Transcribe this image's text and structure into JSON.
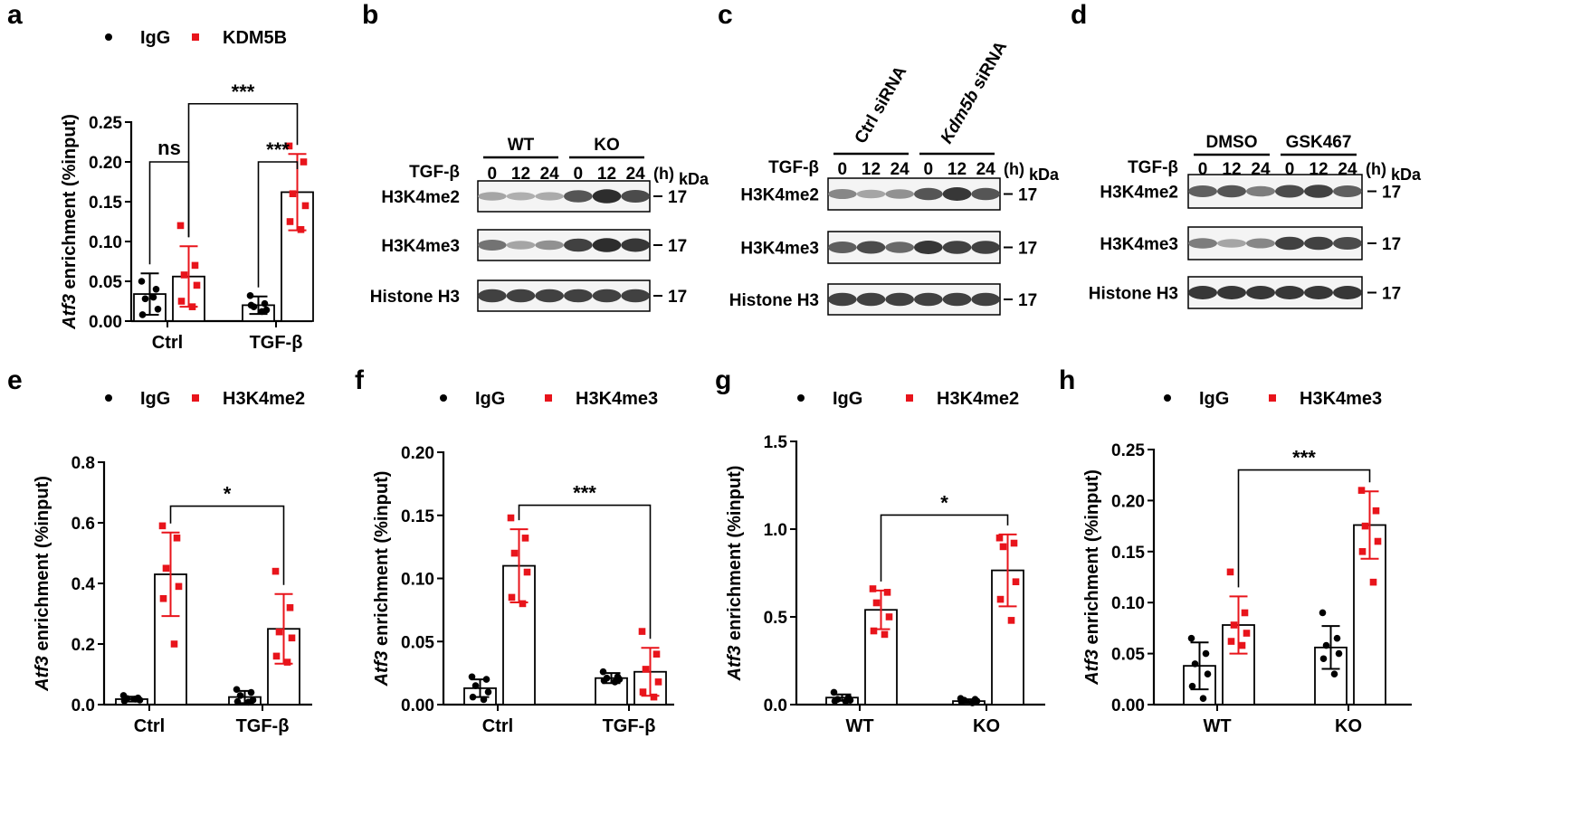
{
  "colors": {
    "igg": "#000000",
    "target": "#e8141b"
  },
  "top_letters": [
    "a",
    "b",
    "c",
    "d"
  ],
  "chart_data": [
    {
      "panel": "a",
      "type": "bar",
      "legend": [
        "IgG",
        "KDM5B"
      ],
      "categories": [
        "Ctrl",
        "TGF-β"
      ],
      "ylabel_italic": "Atf3",
      "ylabel": " enrichment (%input)",
      "ylim": [
        0,
        0.25
      ],
      "yticks": [
        "0.00",
        "0.05",
        "0.10",
        "0.15",
        "0.20",
        "0.25"
      ],
      "series": [
        {
          "name": "IgG",
          "values": [
            0.034,
            0.02
          ],
          "sd": [
            0.026,
            0.011
          ],
          "points": [
            [
              0.05,
              0.04,
              0.028,
              0.015,
              0.008,
              0.03
            ],
            [
              0.032,
              0.022,
              0.018,
              0.014,
              0.02,
              0.012
            ]
          ]
        },
        {
          "name": "KDM5B",
          "values": [
            0.056,
            0.162
          ],
          "sd": [
            0.038,
            0.048
          ],
          "points": [
            [
              0.12,
              0.07,
              0.058,
              0.045,
              0.025,
              0.018
            ],
            [
              0.22,
              0.2,
              0.16,
              0.145,
              0.125,
              0.115
            ]
          ]
        }
      ],
      "significance": [
        {
          "label": "ns",
          "between": [
            [
              0,
              0
            ],
            [
              0,
              1
            ]
          ],
          "y": 0.2
        },
        {
          "label": "***",
          "between": [
            [
              1,
              0
            ],
            [
              1,
              1
            ]
          ],
          "y": 0.2
        },
        {
          "label": "***",
          "between": [
            [
              0,
              1
            ],
            [
              1,
              1
            ]
          ],
          "y": 0.273
        }
      ]
    },
    {
      "panel": "e",
      "type": "bar",
      "legend": [
        "IgG",
        "H3K4me2"
      ],
      "categories": [
        "Ctrl",
        "TGF-β"
      ],
      "ylabel_italic": "Atf3",
      "ylabel": " enrichment (%input)",
      "ylim": [
        0,
        0.8
      ],
      "yticks": [
        "0.0",
        "0.2",
        "0.4",
        "0.6",
        "0.8"
      ],
      "series": [
        {
          "name": "IgG",
          "values": [
            0.018,
            0.025
          ],
          "sd": [
            0.008,
            0.02
          ],
          "points": [
            [
              0.03,
              0.022,
              0.02,
              0.015,
              0.012,
              0.018
            ],
            [
              0.05,
              0.04,
              0.03,
              0.015,
              0.01,
              0.008
            ]
          ]
        },
        {
          "name": "H3K4me2",
          "values": [
            0.43,
            0.25
          ],
          "sd": [
            0.138,
            0.115
          ],
          "points": [
            [
              0.59,
              0.55,
              0.45,
              0.39,
              0.35,
              0.2
            ],
            [
              0.44,
              0.32,
              0.24,
              0.22,
              0.16,
              0.14
            ]
          ]
        }
      ],
      "significance": [
        {
          "label": "*",
          "between": [
            [
              0,
              1
            ],
            [
              1,
              1
            ]
          ],
          "y": 0.655
        }
      ]
    },
    {
      "panel": "f",
      "type": "bar",
      "legend": [
        "IgG",
        "H3K4me3"
      ],
      "categories": [
        "Ctrl",
        "TGF-β"
      ],
      "ylabel_italic": "Atf3",
      "ylabel": " enrichment (%input)",
      "ylim": [
        0,
        0.2
      ],
      "yticks": [
        "0.00",
        "0.05",
        "0.10",
        "0.15",
        "0.20"
      ],
      "series": [
        {
          "name": "IgG",
          "values": [
            0.013,
            0.021
          ],
          "sd": [
            0.007,
            0.004
          ],
          "points": [
            [
              0.022,
              0.02,
              0.015,
              0.01,
              0.006,
              0.004
            ],
            [
              0.026,
              0.022,
              0.021,
              0.02,
              0.019,
              0.018
            ]
          ]
        },
        {
          "name": "H3K4me3",
          "values": [
            0.11,
            0.026
          ],
          "sd": [
            0.029,
            0.019
          ],
          "points": [
            [
              0.148,
              0.132,
              0.12,
              0.105,
              0.085,
              0.08
            ],
            [
              0.058,
              0.04,
              0.028,
              0.018,
              0.01,
              0.006
            ]
          ]
        }
      ],
      "significance": [
        {
          "label": "***",
          "between": [
            [
              0,
              1
            ],
            [
              1,
              1
            ]
          ],
          "y": 0.158
        }
      ]
    },
    {
      "panel": "g",
      "type": "bar",
      "legend": [
        "IgG",
        "H3K4me2"
      ],
      "categories": [
        "WT",
        "KO"
      ],
      "ylabel_italic": "Atf3",
      "ylabel": " enrichment (%input)",
      "ylim": [
        0,
        1.5
      ],
      "yticks": [
        "0.0",
        "0.5",
        "1.0",
        "1.5"
      ],
      "series": [
        {
          "name": "IgG",
          "values": [
            0.04,
            0.02
          ],
          "sd": [
            0.018,
            0.01
          ],
          "points": [
            [
              0.07,
              0.04,
              0.03,
              0.025,
              0.02,
              0.018
            ],
            [
              0.035,
              0.03,
              0.025,
              0.02,
              0.015,
              0.01
            ]
          ]
        },
        {
          "name": "H3K4me2",
          "values": [
            0.54,
            0.765
          ],
          "sd": [
            0.11,
            0.205
          ],
          "points": [
            [
              0.66,
              0.64,
              0.58,
              0.5,
              0.42,
              0.4
            ],
            [
              0.95,
              0.92,
              0.9,
              0.7,
              0.6,
              0.48
            ]
          ]
        }
      ],
      "significance": [
        {
          "label": "*",
          "between": [
            [
              0,
              1
            ],
            [
              1,
              1
            ]
          ],
          "y": 1.08
        }
      ]
    },
    {
      "panel": "h",
      "type": "bar",
      "legend": [
        "IgG",
        "H3K4me3"
      ],
      "categories": [
        "WT",
        "KO"
      ],
      "ylabel_italic": "Atf3",
      "ylabel": " enrichment (%input)",
      "ylim": [
        0,
        0.25
      ],
      "yticks": [
        "0.00",
        "0.05",
        "0.10",
        "0.15",
        "0.20",
        "0.25"
      ],
      "series": [
        {
          "name": "IgG",
          "values": [
            0.038,
            0.056
          ],
          "sd": [
            0.023,
            0.021
          ],
          "points": [
            [
              0.065,
              0.05,
              0.04,
              0.03,
              0.018,
              0.006
            ],
            [
              0.09,
              0.065,
              0.058,
              0.05,
              0.045,
              0.03
            ]
          ]
        },
        {
          "name": "H3K4me3",
          "values": [
            0.078,
            0.176
          ],
          "sd": [
            0.028,
            0.033
          ],
          "points": [
            [
              0.13,
              0.09,
              0.078,
              0.07,
              0.062,
              0.058
            ],
            [
              0.21,
              0.19,
              0.175,
              0.16,
              0.15,
              0.12
            ]
          ]
        }
      ],
      "significance": [
        {
          "label": "***",
          "between": [
            [
              0,
              1
            ],
            [
              1,
              1
            ]
          ],
          "y": 0.23
        }
      ]
    }
  ],
  "blots": [
    {
      "panel": "b",
      "groups": [
        "WT",
        "KO"
      ],
      "groups_italic": [
        false,
        false
      ],
      "group_rotated": false,
      "treatment": "TGF-β",
      "timepoints": [
        "0",
        "12",
        "24",
        "0",
        "12",
        "24"
      ],
      "time_unit": "(h)",
      "mw_unit": "kDa",
      "rows": [
        {
          "label": "H3K4me2",
          "mw": "17",
          "intensities": [
            0.35,
            0.3,
            0.32,
            0.75,
            0.95,
            0.8
          ]
        },
        {
          "label": "H3K4me3",
          "mw": "17",
          "intensities": [
            0.6,
            0.35,
            0.45,
            0.85,
            0.95,
            0.9
          ]
        },
        {
          "label": "Histone H3",
          "mw": "17",
          "intensities": [
            0.85,
            0.85,
            0.85,
            0.85,
            0.85,
            0.85
          ]
        }
      ]
    },
    {
      "panel": "c",
      "groups": [
        "Ctrl siRNA",
        "Kdm5b siRNA"
      ],
      "groups_italic": [
        false,
        true
      ],
      "group_italic_part": [
        "",
        "Kdm5b"
      ],
      "group_plain_part": [
        "Ctrl siRNA",
        " siRNA"
      ],
      "group_rotated": true,
      "treatment": "TGF-β",
      "timepoints": [
        "0",
        "12",
        "24",
        "0",
        "12",
        "24"
      ],
      "time_unit": "(h)",
      "mw_unit": "kDa",
      "rows": [
        {
          "label": "H3K4me2",
          "mw": "17",
          "intensities": [
            0.5,
            0.35,
            0.45,
            0.75,
            0.9,
            0.75
          ]
        },
        {
          "label": "H3K4me3",
          "mw": "17",
          "intensities": [
            0.7,
            0.8,
            0.65,
            0.9,
            0.85,
            0.85
          ]
        },
        {
          "label": "Histone H3",
          "mw": "17",
          "intensities": [
            0.85,
            0.85,
            0.85,
            0.85,
            0.85,
            0.85
          ]
        }
      ]
    },
    {
      "panel": "d",
      "groups": [
        "DMSO",
        "GSK467"
      ],
      "groups_italic": [
        false,
        false
      ],
      "group_rotated": false,
      "treatment": "TGF-β",
      "timepoints": [
        "0",
        "12",
        "24",
        "0",
        "12",
        "24"
      ],
      "time_unit": "(h)",
      "mw_unit": "kDa",
      "rows": [
        {
          "label": "H3K4me2",
          "mw": "17",
          "intensities": [
            0.7,
            0.75,
            0.55,
            0.8,
            0.85,
            0.7
          ]
        },
        {
          "label": "H3K4me3",
          "mw": "17",
          "intensities": [
            0.55,
            0.35,
            0.5,
            0.85,
            0.85,
            0.8
          ]
        },
        {
          "label": "Histone H3",
          "mw": "17",
          "intensities": [
            0.9,
            0.9,
            0.9,
            0.9,
            0.9,
            0.9
          ]
        }
      ]
    }
  ]
}
